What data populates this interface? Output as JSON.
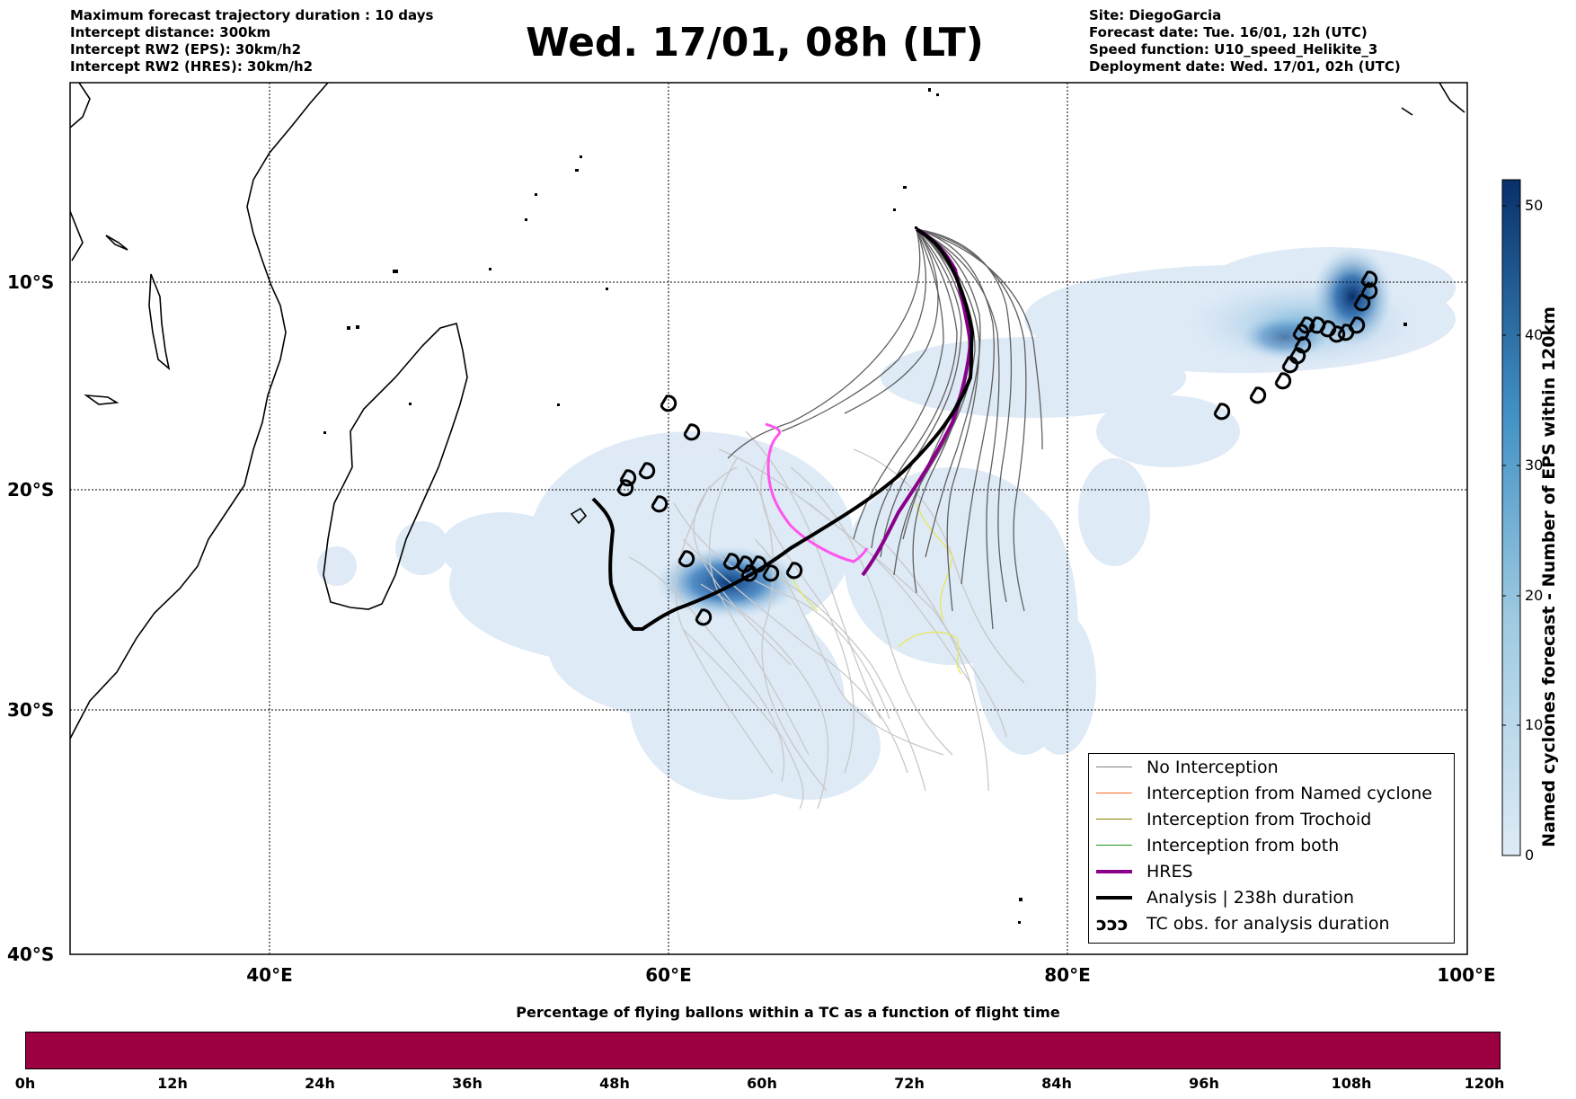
{
  "header": {
    "left_lines": [
      "Maximum forecast trajectory duration : 10 days",
      "Intercept distance: 300km",
      "Intercept RW2 (EPS):  30km/h2",
      "Intercept RW2 (HRES): 30km/h2"
    ],
    "title": "Wed. 17/01, 08h (LT)",
    "right_lines": [
      "Site: DiegoGarcia",
      "Forecast date: Tue. 16/01, 12h (UTC)",
      "Speed function: U10_speed_Helikite_3",
      "Deployment date: Wed. 17/01, 02h (UTC)"
    ]
  },
  "map": {
    "lat_labels": [
      "10°S",
      "20°S",
      "30°S",
      "40°S"
    ],
    "lon_labels": [
      "40°E",
      "60°E",
      "80°E",
      "100°E"
    ],
    "extent": {
      "lon": [
        30,
        100
      ],
      "lat": [
        -40,
        -0.2
      ]
    }
  },
  "colorbar": {
    "title": "Named cyclones forecast - Number of EPS within 120km",
    "ticks": [
      "0",
      "10",
      "20",
      "30",
      "40",
      "50"
    ],
    "range": [
      0,
      52
    ],
    "colors": [
      "#deebf7",
      "#9ecae1",
      "#4292c6",
      "#08306b"
    ]
  },
  "legend": {
    "items": [
      {
        "label": "No Interception",
        "color": "#808080",
        "style": "thin"
      },
      {
        "label": "Interception from Named cyclone",
        "color": "#ff6a1f",
        "style": "thin"
      },
      {
        "label": "Interception from Trochoid",
        "color": "#8a7a00",
        "style": "thin"
      },
      {
        "label": "Interception from both",
        "color": "#1a9a1a",
        "style": "thin"
      },
      {
        "label": "HRES",
        "color": "#8b008b",
        "style": "thick"
      },
      {
        "label": "Analysis | 238h duration",
        "color": "#000000",
        "style": "thick"
      },
      {
        "label": "TC obs. for analysis duration",
        "color": "#000000",
        "style": "symbol",
        "symbol": "ↄↄↄ"
      }
    ]
  },
  "bottom_bar": {
    "title": "Percentage of flying ballons within a TC as a function of flight time",
    "ticks": [
      "0h",
      "12h",
      "24h",
      "36h",
      "48h",
      "60h",
      "72h",
      "84h",
      "96h",
      "108h",
      "120h"
    ],
    "color": "#9c0040"
  },
  "colors": {
    "hres": "#8b008b",
    "analysis": "#000000",
    "eps_dark": "#606060",
    "eps_light": "#c8c8c8",
    "magenta": "#ff55ee",
    "yellow": "#e8e855"
  }
}
